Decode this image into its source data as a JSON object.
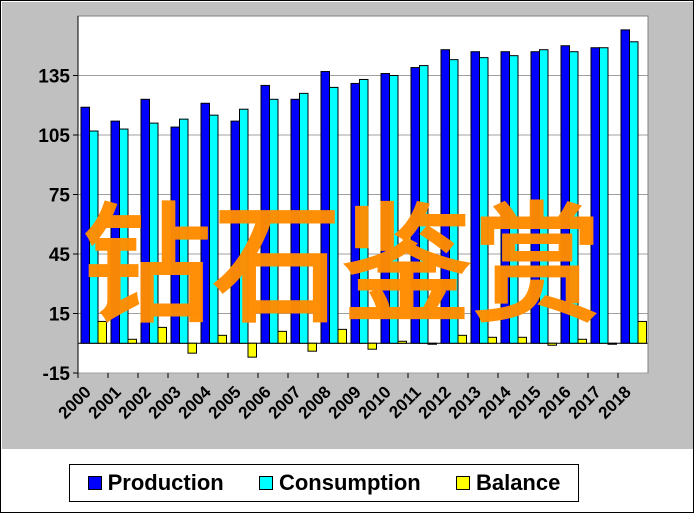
{
  "chart_data": {
    "type": "bar",
    "categories": [
      "2000",
      "2001",
      "2002",
      "2003",
      "2004",
      "2005",
      "2006",
      "2007",
      "2008",
      "2009",
      "2010",
      "2011",
      "2012",
      "2013",
      "2014",
      "2015",
      "2016",
      "2017",
      "2018"
    ],
    "series": [
      {
        "name": "Production",
        "color": "#0000ff",
        "values": [
          119,
          112,
          123,
          109,
          121,
          112,
          130,
          123,
          137,
          131,
          136,
          139,
          148,
          147,
          147,
          147,
          150,
          149,
          158
        ]
      },
      {
        "name": "Consumption",
        "color": "#00ffff",
        "values": [
          107,
          108,
          111,
          113,
          115,
          118,
          123,
          126,
          129,
          133,
          135,
          140,
          143,
          144,
          145,
          148,
          147,
          149,
          152
        ]
      },
      {
        "name": "Balance",
        "color": "#ffff00",
        "values": [
          11,
          2,
          8,
          -5,
          4,
          -7,
          6,
          -4,
          7,
          -3,
          1,
          0,
          4,
          3,
          3,
          -1,
          2,
          0,
          11
        ]
      }
    ],
    "ylim": [
      -15,
      165
    ],
    "yticks": [
      -15,
      15,
      45,
      75,
      105,
      135
    ],
    "grid": true,
    "legend_position": "bottom"
  },
  "watermark": {
    "text": "钻石鉴赏",
    "color": "#ff8c00"
  }
}
